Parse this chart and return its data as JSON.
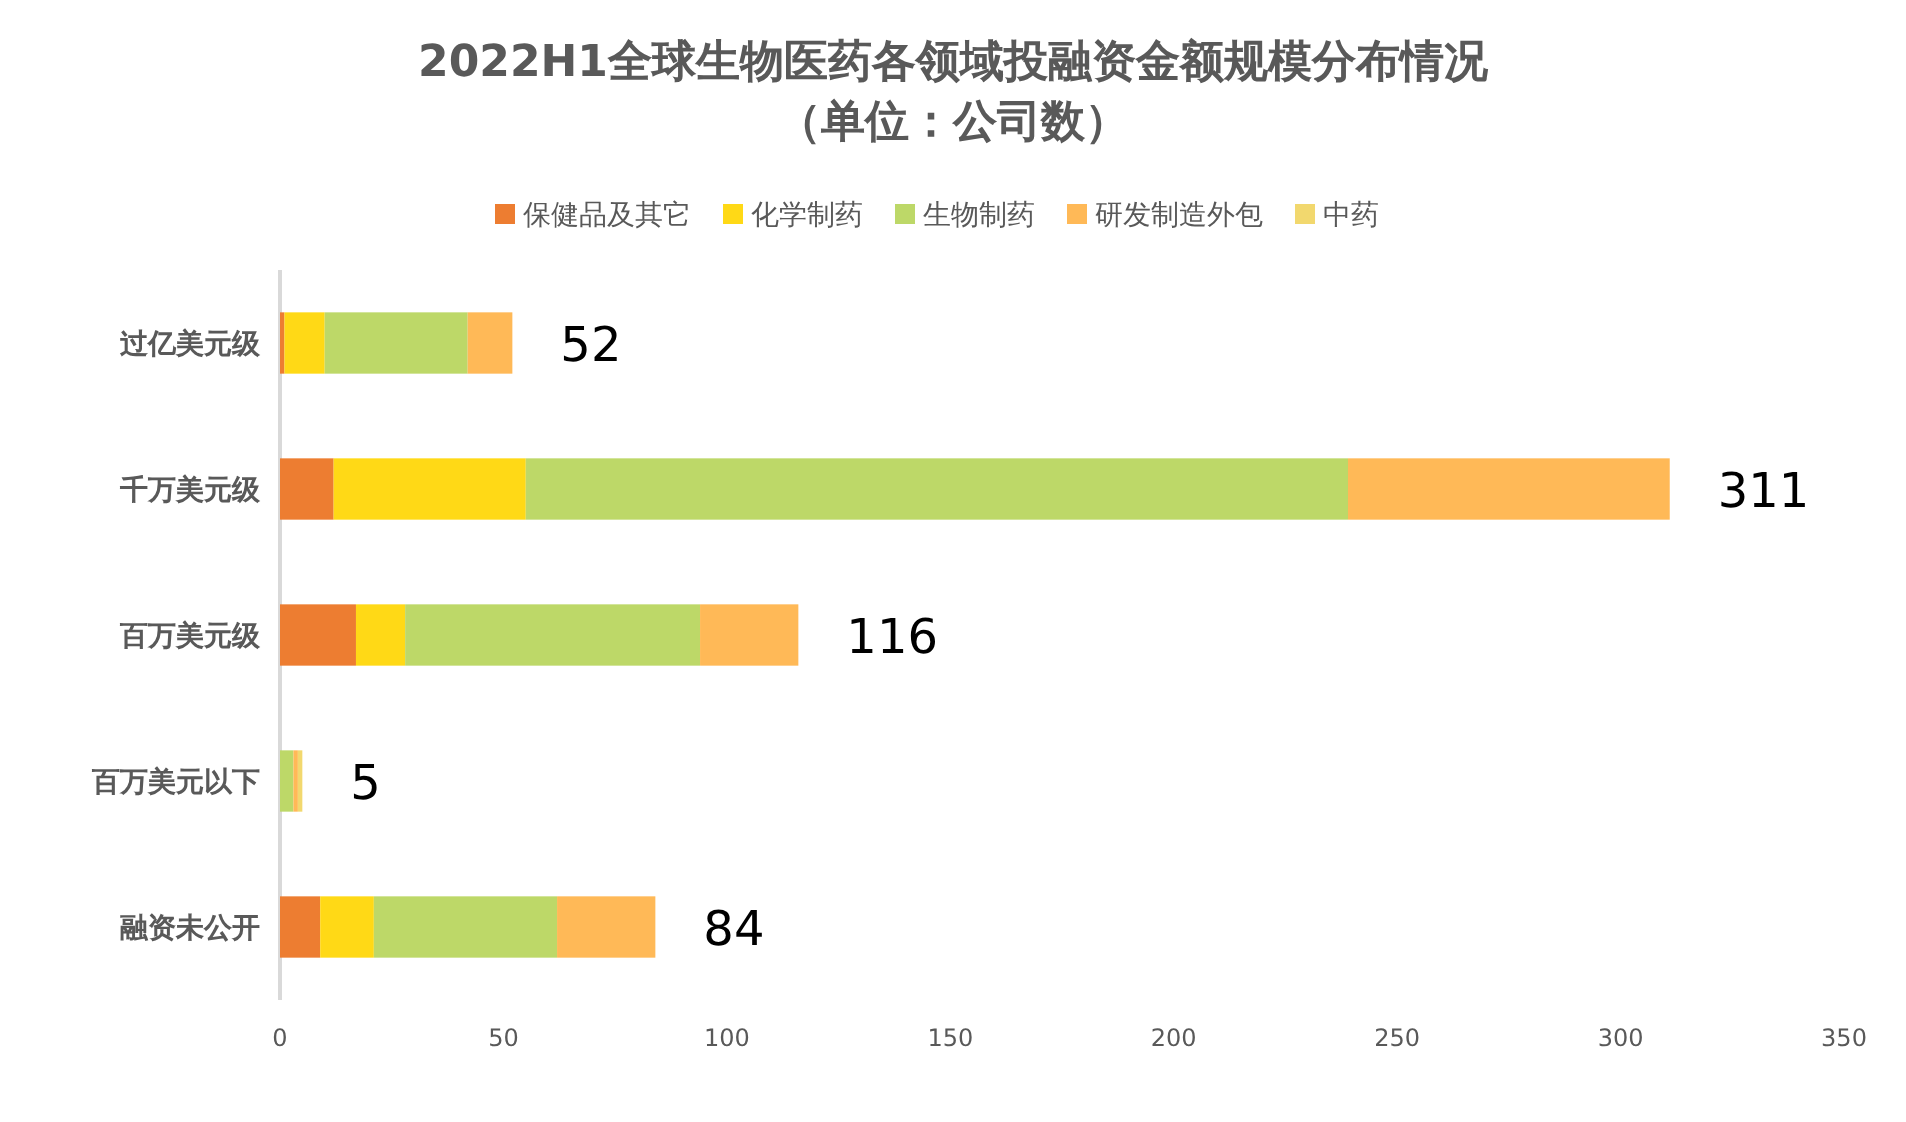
{
  "chart_data": {
    "type": "bar",
    "orientation": "horizontal",
    "stacked": true,
    "title": "2022H1全球生物医药各领域投融资金额规模分布情况",
    "subtitle": "（单位：公司数）",
    "categories": [
      "过亿美元级",
      "千万美元级",
      "百万美元级",
      "百万美元以下",
      "融资未公开"
    ],
    "series": [
      {
        "name": "保健品及其它",
        "color": "#ed7d31",
        "values": [
          1,
          12,
          17,
          0,
          9
        ]
      },
      {
        "name": "化学制药",
        "color": "#ffd916",
        "values": [
          9,
          43,
          11,
          0,
          12
        ]
      },
      {
        "name": "生物制药",
        "color": "#bdd868",
        "values": [
          32,
          184,
          66,
          3,
          41
        ]
      },
      {
        "name": "研发制造外包",
        "color": "#ffb957",
        "values": [
          10,
          72,
          22,
          1,
          22
        ]
      },
      {
        "name": "中药",
        "color": "#f2d86e",
        "values": [
          0,
          0,
          0,
          1,
          0
        ]
      }
    ],
    "totals": [
      "52",
      "311",
      "116",
      "5",
      "84"
    ],
    "xlim": [
      0,
      350
    ],
    "xticks": [
      0,
      50,
      100,
      150,
      200,
      250,
      300,
      350
    ],
    "grid": false,
    "legend": "top"
  }
}
